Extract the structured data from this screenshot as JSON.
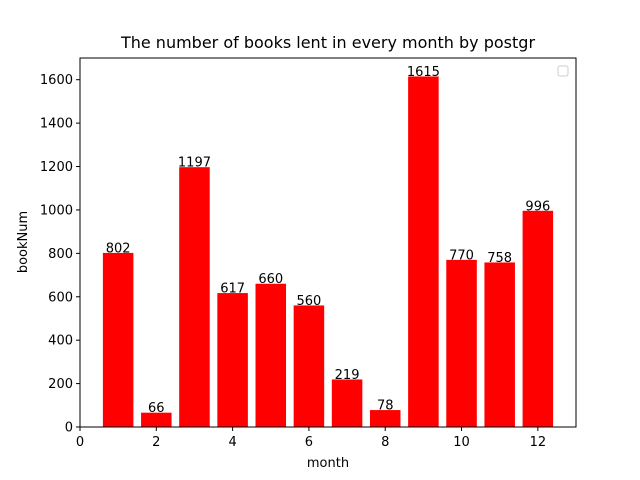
{
  "chart_data": {
    "type": "bar",
    "title": "The number of books lent in every month by postgr",
    "xlabel": "month",
    "ylabel": "bookNum",
    "categories": [
      1,
      2,
      3,
      4,
      5,
      6,
      7,
      8,
      9,
      10,
      11,
      12
    ],
    "values": [
      802,
      66,
      1197,
      617,
      660,
      560,
      219,
      78,
      1615,
      770,
      758,
      996
    ],
    "xlim": [
      0,
      13
    ],
    "ylim": [
      0,
      1700
    ],
    "xticks": [
      0,
      2,
      4,
      6,
      8,
      10,
      12
    ],
    "yticks": [
      0,
      200,
      400,
      600,
      800,
      1000,
      1200,
      1400,
      1600
    ],
    "grid": false,
    "legend_position": "top-right",
    "bar_color": "#ff0000"
  }
}
